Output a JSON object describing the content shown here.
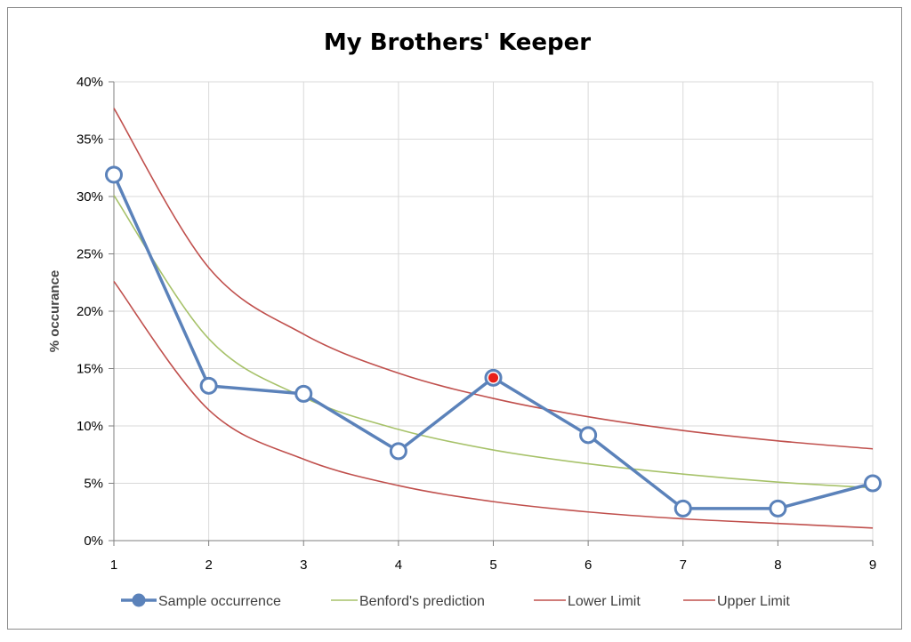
{
  "chart_data": {
    "type": "line",
    "title": "My Brothers' Keeper",
    "xlabel": "",
    "ylabel": "% occurance",
    "x": [
      1,
      2,
      3,
      4,
      5,
      6,
      7,
      8,
      9
    ],
    "ylim": [
      0,
      40
    ],
    "yticks": [
      0,
      5,
      10,
      15,
      20,
      25,
      30,
      35,
      40
    ],
    "ytick_labels": [
      "0%",
      "5%",
      "10%",
      "15%",
      "20%",
      "25%",
      "30%",
      "35%",
      "40%"
    ],
    "grid": true,
    "legend_position": "bottom",
    "highlighted_point": {
      "series": "Sample occurrence",
      "x": 5,
      "color": "#e8201a"
    },
    "series": [
      {
        "name": "Sample occurrence",
        "color": "#5b82ba",
        "marker": "circle",
        "values": [
          31.9,
          13.5,
          12.8,
          7.8,
          14.2,
          9.2,
          2.8,
          2.8,
          5.0
        ]
      },
      {
        "name": "Benford's prediction",
        "color": "#a7c26a",
        "values": [
          30.1,
          17.6,
          12.5,
          9.7,
          7.9,
          6.7,
          5.8,
          5.1,
          4.6
        ]
      },
      {
        "name": "Lower Limit",
        "color": "#c0504d",
        "values": [
          22.6,
          11.4,
          7.1,
          4.8,
          3.4,
          2.5,
          1.9,
          1.5,
          1.1
        ]
      },
      {
        "name": "Upper Limit",
        "color": "#c0504d",
        "values": [
          37.7,
          23.8,
          18.0,
          14.6,
          12.4,
          10.8,
          9.6,
          8.7,
          8.0
        ]
      }
    ]
  }
}
